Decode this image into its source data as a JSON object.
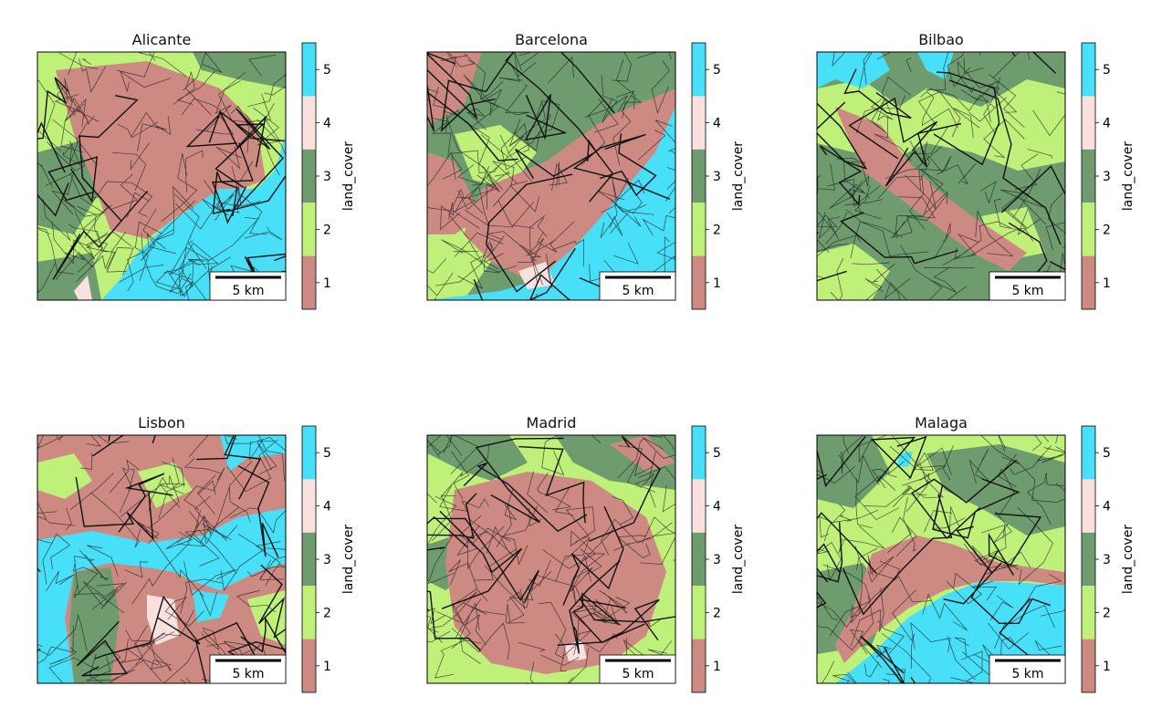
{
  "colorbar": {
    "label": "land_cover",
    "classes": [
      {
        "value": 1,
        "label": "1",
        "color": "#cd8a82"
      },
      {
        "value": 2,
        "label": "2",
        "color": "#bff07a"
      },
      {
        "value": 3,
        "label": "3",
        "color": "#6e9c6e"
      },
      {
        "value": 4,
        "label": "4",
        "color": "#fbe0e0"
      },
      {
        "value": 5,
        "label": "5",
        "color": "#48e0f8"
      }
    ]
  },
  "panels": [
    {
      "id": "alicante",
      "title": "Alicante",
      "scalebar": "5 km"
    },
    {
      "id": "barcelona",
      "title": "Barcelona",
      "scalebar": "5 km"
    },
    {
      "id": "bilbao",
      "title": "Bilbao",
      "scalebar": "5 km"
    },
    {
      "id": "lisbon",
      "title": "Lisbon",
      "scalebar": "5 km"
    },
    {
      "id": "madrid",
      "title": "Madrid",
      "scalebar": "5 km"
    },
    {
      "id": "malaga",
      "title": "Malaga",
      "scalebar": "5 km"
    }
  ]
}
